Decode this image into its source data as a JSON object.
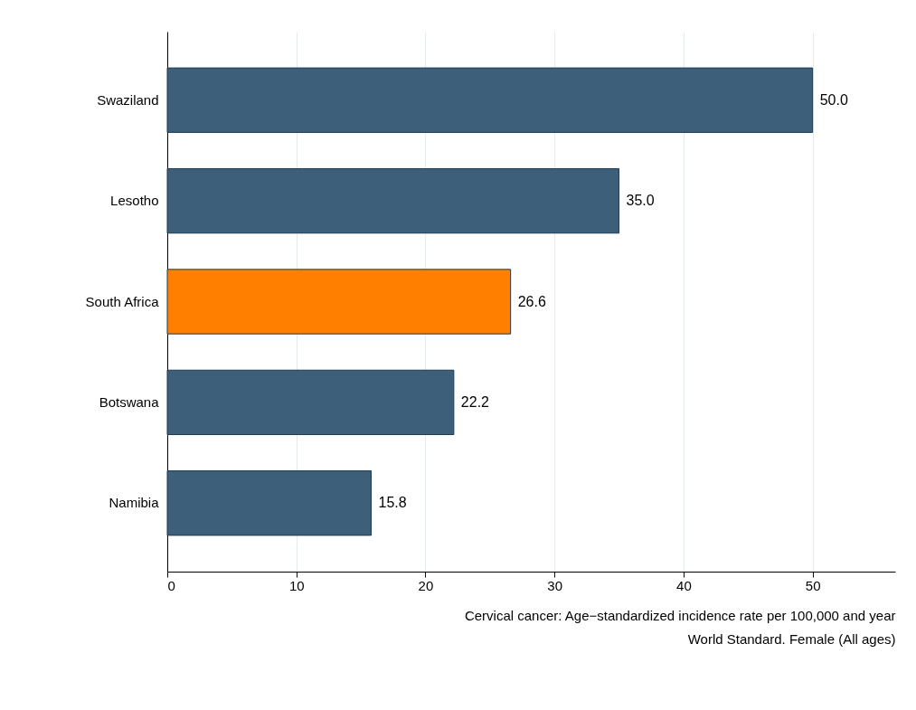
{
  "chart_data": {
    "type": "bar",
    "orientation": "horizontal",
    "categories": [
      "Swaziland",
      "Lesotho",
      "South Africa",
      "Botswana",
      "Namibia"
    ],
    "values": [
      50.0,
      35.0,
      26.6,
      22.2,
      15.8
    ],
    "value_labels": [
      "50.0",
      "35.0",
      "26.6",
      "22.2",
      "15.8"
    ],
    "colors": [
      "#3d5f79",
      "#3d5f79",
      "#ff8000",
      "#3d5f79",
      "#3d5f79"
    ],
    "xlim": [
      0,
      56.4
    ],
    "xticks": [
      0,
      10,
      20,
      30,
      40,
      50
    ],
    "grid": "x",
    "xlabel": "Cervical cancer: Age−standardized incidence rate per 100,000 and year",
    "annotations": [
      "World Standard. Female (All ages)"
    ]
  }
}
